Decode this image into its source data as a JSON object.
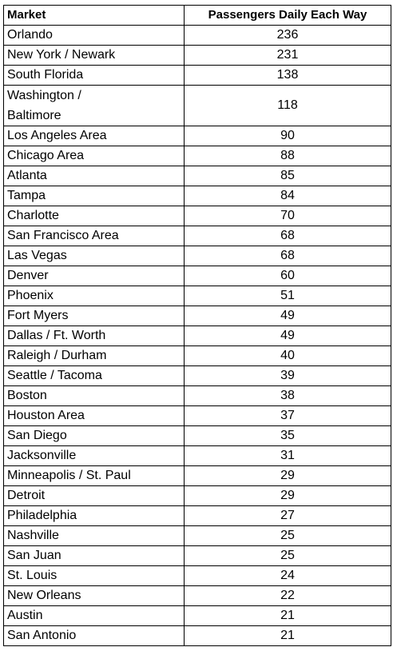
{
  "table": {
    "headers": [
      "Market",
      "Passengers Daily Each Way"
    ],
    "rows": [
      [
        "Orlando",
        "236"
      ],
      [
        "New York / Newark",
        "231"
      ],
      [
        "South Florida",
        "138"
      ],
      [
        "Washington / Baltimore",
        "118"
      ],
      [
        "Los Angeles Area",
        "90"
      ],
      [
        "Chicago Area",
        "88"
      ],
      [
        "Atlanta",
        "85"
      ],
      [
        "Tampa",
        "84"
      ],
      [
        "Charlotte",
        "70"
      ],
      [
        "San Francisco Area",
        "68"
      ],
      [
        "Las Vegas",
        "68"
      ],
      [
        "Denver",
        "60"
      ],
      [
        "Phoenix",
        "51"
      ],
      [
        "Fort Myers",
        "49"
      ],
      [
        "Dallas / Ft. Worth",
        "49"
      ],
      [
        "Raleigh / Durham",
        "40"
      ],
      [
        "Seattle / Tacoma",
        "39"
      ],
      [
        "Boston",
        "38"
      ],
      [
        "Houston Area",
        "37"
      ],
      [
        "San Diego",
        "35"
      ],
      [
        "Jacksonville",
        "31"
      ],
      [
        "Minneapolis / St. Paul",
        "29"
      ],
      [
        "Detroit",
        "29"
      ],
      [
        "Philadelphia",
        "27"
      ],
      [
        "Nashville",
        "25"
      ],
      [
        "San Juan",
        "25"
      ],
      [
        "St. Louis",
        "24"
      ],
      [
        "New Orleans",
        "22"
      ],
      [
        "Austin",
        "21"
      ],
      [
        "San Antonio",
        "21"
      ]
    ]
  }
}
